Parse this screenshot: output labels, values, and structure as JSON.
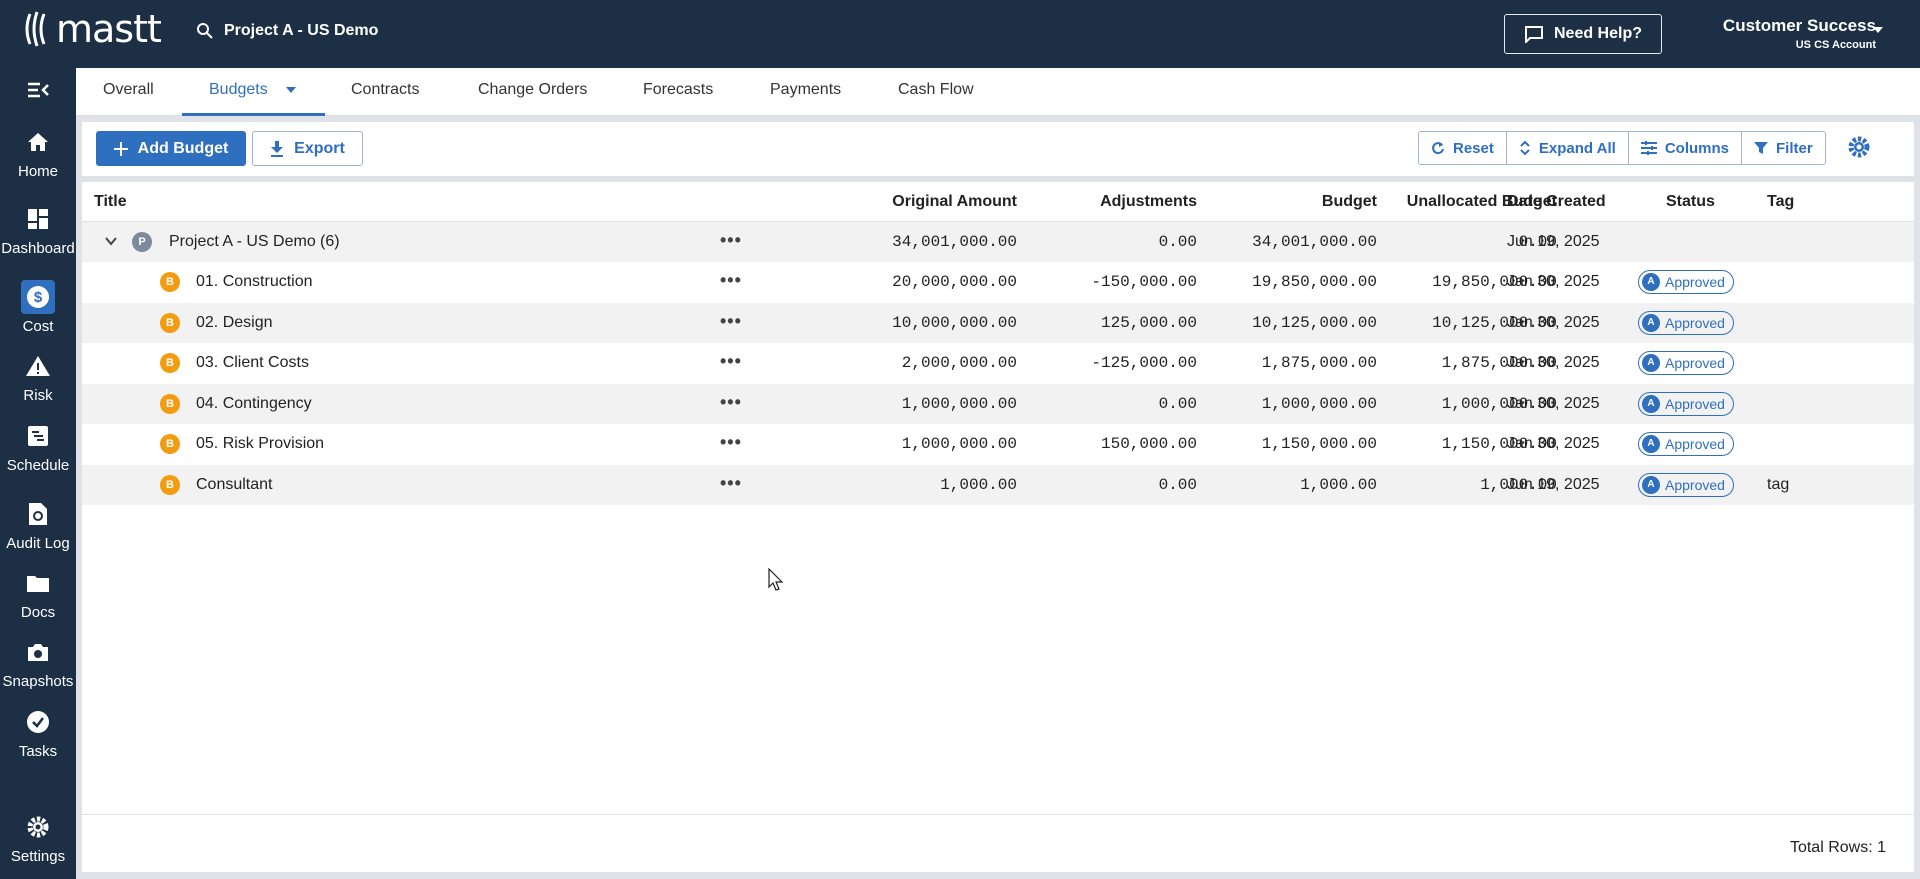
{
  "app": {
    "logo_text": "mastt",
    "project_name": "Project A - US Demo"
  },
  "header": {
    "help_label": "Need Help?",
    "account_name": "Customer Success",
    "account_sub": "US CS Account"
  },
  "sidebar": {
    "items": [
      {
        "label": "Home"
      },
      {
        "label": "Dashboard"
      },
      {
        "label": "Cost"
      },
      {
        "label": "Risk"
      },
      {
        "label": "Schedule"
      },
      {
        "label": "Audit Log"
      },
      {
        "label": "Docs"
      },
      {
        "label": "Snapshots"
      },
      {
        "label": "Tasks"
      },
      {
        "label": "Settings"
      }
    ]
  },
  "tabs": [
    {
      "label": "Overall"
    },
    {
      "label": "Budgets"
    },
    {
      "label": "Contracts"
    },
    {
      "label": "Change Orders"
    },
    {
      "label": "Forecasts"
    },
    {
      "label": "Payments"
    },
    {
      "label": "Cash Flow"
    }
  ],
  "toolbar": {
    "add_label": "Add Budget",
    "export_label": "Export",
    "reset_label": "Reset",
    "expand_label": "Expand All",
    "columns_label": "Columns",
    "filter_label": "Filter"
  },
  "table": {
    "columns": [
      "Title",
      "Original Amount",
      "Adjustments",
      "Budget",
      "Unallocated Budget",
      "Date Created",
      "Status",
      "Tag"
    ],
    "group": {
      "badge": "P",
      "title": "Project A - US Demo",
      "count": "(6)",
      "original": "34,001,000.00",
      "adjustments": "0.00",
      "budget": "34,001,000.00",
      "unallocated": "0.00",
      "date": "Jun 19, 2025"
    },
    "rows": [
      {
        "badge": "B",
        "title": "01. Construction",
        "original": "20,000,000.00",
        "adjustments": "-150,000.00",
        "budget": "19,850,000.00",
        "unallocated": "19,850,000.00",
        "date": "Jan 30, 2025",
        "status_badge": "A",
        "status": "Approved",
        "tag": ""
      },
      {
        "badge": "B",
        "title": "02. Design",
        "original": "10,000,000.00",
        "adjustments": "125,000.00",
        "budget": "10,125,000.00",
        "unallocated": "10,125,000.00",
        "date": "Jan 30, 2025",
        "status_badge": "A",
        "status": "Approved",
        "tag": ""
      },
      {
        "badge": "B",
        "title": "03. Client Costs",
        "original": "2,000,000.00",
        "adjustments": "-125,000.00",
        "budget": "1,875,000.00",
        "unallocated": "1,875,000.00",
        "date": "Jan 30, 2025",
        "status_badge": "A",
        "status": "Approved",
        "tag": ""
      },
      {
        "badge": "B",
        "title": "04. Contingency",
        "original": "1,000,000.00",
        "adjustments": "0.00",
        "budget": "1,000,000.00",
        "unallocated": "1,000,000.00",
        "date": "Jan 30, 2025",
        "status_badge": "A",
        "status": "Approved",
        "tag": ""
      },
      {
        "badge": "B",
        "title": "05. Risk Provision",
        "original": "1,000,000.00",
        "adjustments": "150,000.00",
        "budget": "1,150,000.00",
        "unallocated": "1,150,000.00",
        "date": "Jan 30, 2025",
        "status_badge": "A",
        "status": "Approved",
        "tag": ""
      },
      {
        "badge": "B",
        "title": "Consultant",
        "original": "1,000.00",
        "adjustments": "0.00",
        "budget": "1,000.00",
        "unallocated": "1,000.00",
        "date": "Jun 19, 2025",
        "status_badge": "A",
        "status": "Approved",
        "tag": "tag"
      }
    ],
    "total_rows": "Total Rows: 1"
  },
  "colors": {
    "navy": "#1c2f45",
    "accent": "#2f6fc0",
    "badge_orange": "#f39c12"
  }
}
